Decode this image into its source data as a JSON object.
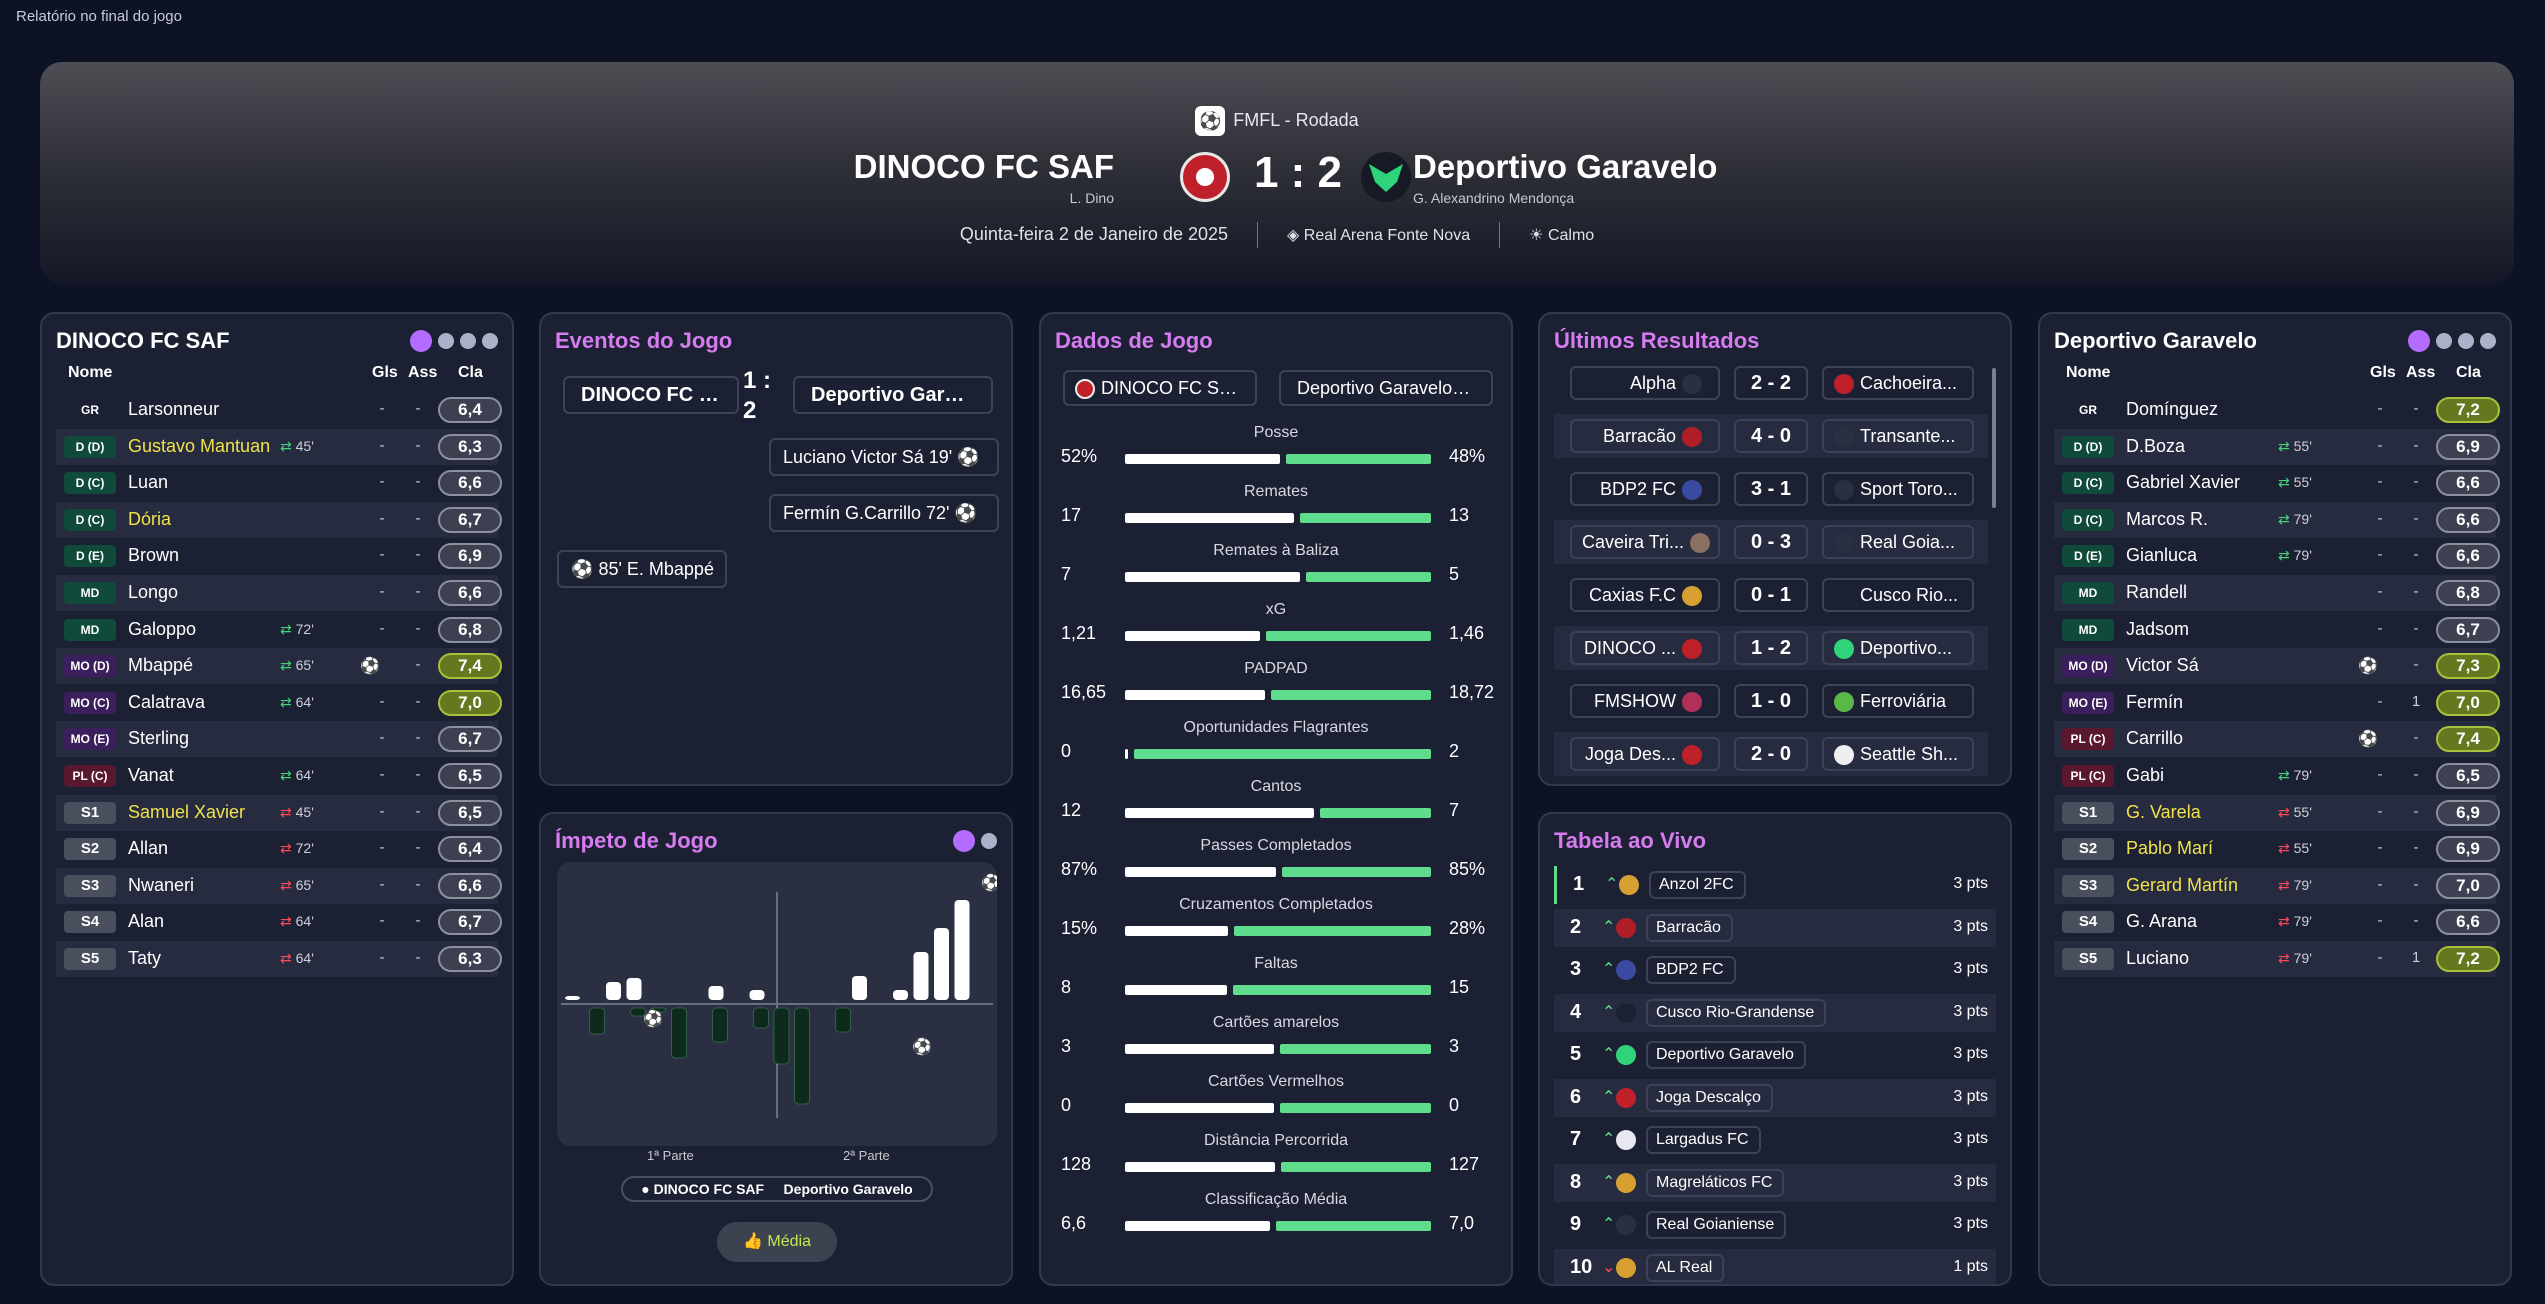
{
  "window_title": "Relatório no final do jogo",
  "match": {
    "competition": "FMFL - Rodada",
    "home_team": "DINOCO FC SAF",
    "home_manager": "L. Dino",
    "away_team": "Deportivo Garavelo",
    "away_manager": "G. Alexandrino Mendonça",
    "score": "1 : 2",
    "date": "Quinta-feira 2 de Janeiro de 2025",
    "stadium": "Real Arena Fonte Nova",
    "weather": "Calmo"
  },
  "columns": {
    "name": "Nome",
    "goals": "Gls",
    "assists": "Ass",
    "rating": "Cla"
  },
  "home_lineup": {
    "title": "DINOCO FC SAF",
    "players": [
      {
        "pos": "GR",
        "cls": "GR",
        "name": "Larsonneur",
        "yellow": false,
        "sub": "",
        "subdir": "",
        "goals": "-",
        "assists": "-",
        "rating": "6,4",
        "hi": false,
        "ball": false
      },
      {
        "pos": "D (D)",
        "cls": "D",
        "name": "Gustavo Mantuan",
        "yellow": true,
        "sub": "45'",
        "subdir": "in",
        "goals": "-",
        "assists": "-",
        "rating": "6,3",
        "hi": false,
        "ball": false
      },
      {
        "pos": "D (C)",
        "cls": "D",
        "name": "Luan",
        "yellow": false,
        "sub": "",
        "subdir": "",
        "goals": "-",
        "assists": "-",
        "rating": "6,6",
        "hi": false,
        "ball": false
      },
      {
        "pos": "D (C)",
        "cls": "D",
        "name": "Dória",
        "yellow": true,
        "sub": "",
        "subdir": "",
        "goals": "-",
        "assists": "-",
        "rating": "6,7",
        "hi": false,
        "ball": false
      },
      {
        "pos": "D (E)",
        "cls": "D",
        "name": "Brown",
        "yellow": false,
        "sub": "",
        "subdir": "",
        "goals": "-",
        "assists": "-",
        "rating": "6,9",
        "hi": false,
        "ball": false
      },
      {
        "pos": "MD",
        "cls": "D",
        "name": "Longo",
        "yellow": false,
        "sub": "",
        "subdir": "",
        "goals": "-",
        "assists": "-",
        "rating": "6,6",
        "hi": false,
        "ball": false
      },
      {
        "pos": "MD",
        "cls": "D",
        "name": "Galoppo",
        "yellow": false,
        "sub": "72'",
        "subdir": "in",
        "goals": "-",
        "assists": "-",
        "rating": "6,8",
        "hi": false,
        "ball": false
      },
      {
        "pos": "MO (D)",
        "cls": "MO",
        "name": "Mbappé",
        "yellow": false,
        "sub": "65'",
        "subdir": "in",
        "goals": "",
        "assists": "-",
        "rating": "7,4",
        "hi": true,
        "ball": true
      },
      {
        "pos": "MO (C)",
        "cls": "MO",
        "name": "Calatrava",
        "yellow": false,
        "sub": "64'",
        "subdir": "in",
        "goals": "-",
        "assists": "-",
        "rating": "7,0",
        "hi": true,
        "ball": false
      },
      {
        "pos": "MO (E)",
        "cls": "MO",
        "name": "Sterling",
        "yellow": false,
        "sub": "",
        "subdir": "",
        "goals": "-",
        "assists": "-",
        "rating": "6,7",
        "hi": false,
        "ball": false
      },
      {
        "pos": "PL (C)",
        "cls": "PL",
        "name": "Vanat",
        "yellow": false,
        "sub": "64'",
        "subdir": "in",
        "goals": "-",
        "assists": "-",
        "rating": "6,5",
        "hi": false,
        "ball": false
      },
      {
        "pos": "S1",
        "cls": "S",
        "name": "Samuel Xavier",
        "yellow": true,
        "sub": "45'",
        "subdir": "out",
        "goals": "-",
        "assists": "-",
        "rating": "6,5",
        "hi": false,
        "ball": false
      },
      {
        "pos": "S2",
        "cls": "S",
        "name": "Allan",
        "yellow": false,
        "sub": "72'",
        "subdir": "out",
        "goals": "-",
        "assists": "-",
        "rating": "6,4",
        "hi": false,
        "ball": false
      },
      {
        "pos": "S3",
        "cls": "S",
        "name": "Nwaneri",
        "yellow": false,
        "sub": "65'",
        "subdir": "out",
        "goals": "-",
        "assists": "-",
        "rating": "6,6",
        "hi": false,
        "ball": false
      },
      {
        "pos": "S4",
        "cls": "S",
        "name": "Alan",
        "yellow": false,
        "sub": "64'",
        "subdir": "out",
        "goals": "-",
        "assists": "-",
        "rating": "6,7",
        "hi": false,
        "ball": false
      },
      {
        "pos": "S5",
        "cls": "S",
        "name": "Taty",
        "yellow": false,
        "sub": "64'",
        "subdir": "out",
        "goals": "-",
        "assists": "-",
        "rating": "6,3",
        "hi": false,
        "ball": false
      }
    ]
  },
  "away_lineup": {
    "title": "Deportivo Garavelo",
    "players": [
      {
        "pos": "GR",
        "cls": "GR",
        "name": "Domínguez",
        "yellow": false,
        "sub": "",
        "subdir": "",
        "goals": "-",
        "assists": "-",
        "rating": "7,2",
        "hi": true,
        "ball": false
      },
      {
        "pos": "D (D)",
        "cls": "D",
        "name": "D.Boza",
        "yellow": false,
        "sub": "55'",
        "subdir": "in",
        "goals": "-",
        "assists": "-",
        "rating": "6,9",
        "hi": false,
        "ball": false
      },
      {
        "pos": "D (C)",
        "cls": "D",
        "name": "Gabriel Xavier",
        "yellow": false,
        "sub": "55'",
        "subdir": "in",
        "goals": "-",
        "assists": "-",
        "rating": "6,6",
        "hi": false,
        "ball": false
      },
      {
        "pos": "D (C)",
        "cls": "D",
        "name": "Marcos R.",
        "yellow": false,
        "sub": "79'",
        "subdir": "in",
        "goals": "-",
        "assists": "-",
        "rating": "6,6",
        "hi": false,
        "ball": false
      },
      {
        "pos": "D (E)",
        "cls": "D",
        "name": "Gianluca",
        "yellow": false,
        "sub": "79'",
        "subdir": "in",
        "goals": "-",
        "assists": "-",
        "rating": "6,6",
        "hi": false,
        "ball": false
      },
      {
        "pos": "MD",
        "cls": "D",
        "name": "Randell",
        "yellow": false,
        "sub": "",
        "subdir": "",
        "goals": "-",
        "assists": "-",
        "rating": "6,8",
        "hi": false,
        "ball": false
      },
      {
        "pos": "MD",
        "cls": "D",
        "name": "Jadsom",
        "yellow": false,
        "sub": "",
        "subdir": "",
        "goals": "-",
        "assists": "-",
        "rating": "6,7",
        "hi": false,
        "ball": false
      },
      {
        "pos": "MO (D)",
        "cls": "MO",
        "name": "Victor Sá",
        "yellow": false,
        "sub": "",
        "subdir": "",
        "goals": "",
        "assists": "-",
        "rating": "7,3",
        "hi": true,
        "ball": true
      },
      {
        "pos": "MO (E)",
        "cls": "MO",
        "name": "Fermín",
        "yellow": false,
        "sub": "",
        "subdir": "",
        "goals": "-",
        "assists": "1",
        "rating": "7,0",
        "hi": true,
        "ball": false
      },
      {
        "pos": "PL (C)",
        "cls": "PL",
        "name": "Carrillo",
        "yellow": false,
        "sub": "",
        "subdir": "",
        "goals": "",
        "assists": "-",
        "rating": "7,4",
        "hi": true,
        "ball": true
      },
      {
        "pos": "PL (C)",
        "cls": "PL",
        "name": "Gabi",
        "yellow": false,
        "sub": "79'",
        "subdir": "in",
        "goals": "-",
        "assists": "-",
        "rating": "6,5",
        "hi": false,
        "ball": false
      },
      {
        "pos": "S1",
        "cls": "S",
        "name": "G. Varela",
        "yellow": true,
        "sub": "55'",
        "subdir": "out",
        "goals": "-",
        "assists": "-",
        "rating": "6,9",
        "hi": false,
        "ball": false
      },
      {
        "pos": "S2",
        "cls": "S",
        "name": "Pablo Marí",
        "yellow": true,
        "sub": "55'",
        "subdir": "out",
        "goals": "-",
        "assists": "-",
        "rating": "6,9",
        "hi": false,
        "ball": false
      },
      {
        "pos": "S3",
        "cls": "S",
        "name": "Gerard Martín",
        "yellow": true,
        "sub": "79'",
        "subdir": "out",
        "goals": "-",
        "assists": "-",
        "rating": "7,0",
        "hi": false,
        "ball": false
      },
      {
        "pos": "S4",
        "cls": "S",
        "name": "G. Arana",
        "yellow": false,
        "sub": "79'",
        "subdir": "out",
        "goals": "-",
        "assists": "-",
        "rating": "6,6",
        "hi": false,
        "ball": false
      },
      {
        "pos": "S5",
        "cls": "S",
        "name": "Luciano",
        "yellow": false,
        "sub": "79'",
        "subdir": "out",
        "goals": "-",
        "assists": "1",
        "rating": "7,2",
        "hi": true,
        "ball": false
      }
    ]
  },
  "events": {
    "title": "Eventos do Jogo",
    "home_box": "DINOCO FC SAF",
    "away_box": "Deportivo Garavelo",
    "score_top": "1 :",
    "score_bottom": "2",
    "away_events": [
      "Luciano  Victor Sá  19'",
      "Fermín  G.Carrillo  72'"
    ],
    "home_events": [
      "85'  E. Mbappé"
    ]
  },
  "momentum": {
    "title": "Ímpeto de Jogo",
    "half1": "1ª Parte",
    "half2": "2ª Parte",
    "legend_home": "DINOCO FC SAF",
    "legend_away": "Deportivo Garavelo",
    "media_button": "Média",
    "home_bars": [
      0.02,
      0,
      0.18,
      0.22,
      0,
      0,
      0,
      0.14,
      0,
      0.1,
      0,
      0,
      0,
      0,
      0.24,
      0,
      0.1,
      0.48,
      0.72,
      1.0
    ],
    "away_bars": [
      0,
      0.26,
      0,
      0.08,
      0.04,
      0.5,
      0,
      0.34,
      0,
      0.2,
      0.56,
      0.96,
      0,
      0.24,
      0,
      0,
      0,
      0,
      0,
      0
    ]
  },
  "stats": {
    "title": "Dados de Jogo",
    "home_label": "DINOCO FC SAF",
    "away_label": "Deportivo Garavelo",
    "rows": [
      {
        "label": "Posse",
        "home": "52%",
        "away": "48%",
        "hv": 52,
        "av": 48
      },
      {
        "label": "Remates",
        "home": "17",
        "away": "13",
        "hv": 17,
        "av": 13
      },
      {
        "label": "Remates à Baliza",
        "home": "7",
        "away": "5",
        "hv": 7,
        "av": 5
      },
      {
        "label": "xG",
        "home": "1,21",
        "away": "1,46",
        "hv": 1.21,
        "av": 1.46
      },
      {
        "label": "PADPAD",
        "home": "16,65",
        "away": "18,72",
        "hv": 16.65,
        "av": 18.72
      },
      {
        "label": "Oportunidades Flagrantes",
        "home": "0",
        "away": "2",
        "hv": 0,
        "av": 2
      },
      {
        "label": "Cantos",
        "home": "12",
        "away": "7",
        "hv": 12,
        "av": 7
      },
      {
        "label": "Passes Completados",
        "home": "87%",
        "away": "85%",
        "hv": 87,
        "av": 85
      },
      {
        "label": "Cruzamentos Completados",
        "home": "15%",
        "away": "28%",
        "hv": 15,
        "av": 28
      },
      {
        "label": "Faltas",
        "home": "8",
        "away": "15",
        "hv": 8,
        "av": 15
      },
      {
        "label": "Cartões amarelos",
        "home": "3",
        "away": "3",
        "hv": 3,
        "av": 3
      },
      {
        "label": "Cartões Vermelhos",
        "home": "0",
        "away": "0",
        "hv": 0,
        "av": 0
      },
      {
        "label": "Distância Percorrida",
        "home": "128",
        "away": "127",
        "hv": 128,
        "av": 127
      },
      {
        "label": "Classificação Média",
        "home": "6,6",
        "away": "7,0",
        "hv": 6.6,
        "av": 7.0
      }
    ]
  },
  "results": {
    "title": "Últimos Resultados",
    "rows": [
      {
        "home": "Alpha",
        "score": "2 - 2",
        "away": "Cachoeira..."
      },
      {
        "home": "Barracão",
        "score": "4 - 0",
        "away": "Transante..."
      },
      {
        "home": "BDP2 FC",
        "score": "3 - 1",
        "away": "Sport Toro..."
      },
      {
        "home": "Caveira Tri...",
        "score": "0 - 3",
        "away": "Real Goia..."
      },
      {
        "home": "Caxias F.C",
        "score": "0 - 1",
        "away": "Cusco Rio..."
      },
      {
        "home": "DINOCO ...",
        "score": "1 - 2",
        "away": "Deportivo..."
      },
      {
        "home": "FMSHOW",
        "score": "1 - 0",
        "away": "Ferroviária"
      },
      {
        "home": "Joga Des...",
        "score": "2 - 0",
        "away": "Seattle Sh..."
      }
    ]
  },
  "league": {
    "title": "Tabela ao Vivo",
    "rows": [
      {
        "pos": "1",
        "trend": "up",
        "team": "Anzol 2FC",
        "pts": "3 pts"
      },
      {
        "pos": "2",
        "trend": "up",
        "team": "Barracão",
        "pts": "3 pts"
      },
      {
        "pos": "3",
        "trend": "up",
        "team": "BDP2 FC",
        "pts": "3 pts"
      },
      {
        "pos": "4",
        "trend": "up",
        "team": "Cusco Rio-Grandense",
        "pts": "3 pts"
      },
      {
        "pos": "5",
        "trend": "up",
        "team": "Deportivo Garavelo",
        "pts": "3 pts"
      },
      {
        "pos": "6",
        "trend": "up",
        "team": "Joga Descalço",
        "pts": "3 pts"
      },
      {
        "pos": "7",
        "trend": "up",
        "team": "Largadus FC",
        "pts": "3 pts"
      },
      {
        "pos": "8",
        "trend": "up",
        "team": "Magreláticos FC",
        "pts": "3 pts"
      },
      {
        "pos": "9",
        "trend": "up",
        "team": "Real Goianiense",
        "pts": "3 pts"
      },
      {
        "pos": "10",
        "trend": "down",
        "team": "AL Real",
        "pts": "1 pts"
      }
    ]
  },
  "colors": {
    "accent_purple": "#b36cff",
    "title_pink": "#d67cf0",
    "away_bar": "#5fdc8c",
    "rating_high": "#66781f"
  }
}
